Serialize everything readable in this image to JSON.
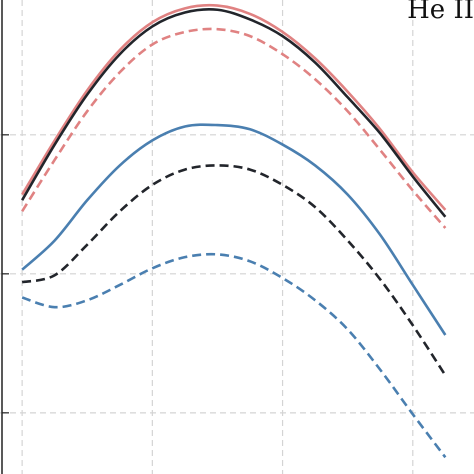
{
  "chart_data": {
    "type": "line",
    "annotation": "He II",
    "x": [
      0,
      0.25,
      0.5,
      0.75,
      1,
      1.25,
      1.5,
      1.75,
      2,
      2.25,
      2.5,
      2.75,
      3,
      3.25
    ],
    "xlim": [
      -0.17,
      3.47
    ],
    "xticks": [
      0,
      1,
      2,
      3
    ],
    "ylim": [
      -0.44,
      2.97
    ],
    "yticks": [
      0,
      1,
      2
    ],
    "grid": true,
    "series": [
      {
        "color": "#e08282",
        "dash": false,
        "values": [
          1.57,
          1.96,
          2.32,
          2.61,
          2.81,
          2.91,
          2.93,
          2.87,
          2.74,
          2.55,
          2.31,
          2.04,
          1.73,
          1.46
        ]
      },
      {
        "color": "#22252b",
        "dash": false,
        "values": [
          1.53,
          1.93,
          2.29,
          2.58,
          2.78,
          2.88,
          2.9,
          2.83,
          2.71,
          2.52,
          2.27,
          2.01,
          1.7,
          1.41
        ]
      },
      {
        "color": "#e08282",
        "dash": true,
        "values": [
          1.45,
          1.82,
          2.17,
          2.45,
          2.65,
          2.74,
          2.76,
          2.71,
          2.58,
          2.4,
          2.17,
          1.89,
          1.6,
          1.33
        ]
      },
      {
        "color": "#4a7fb0",
        "dash": false,
        "values": [
          1.03,
          1.24,
          1.53,
          1.78,
          1.96,
          2.06,
          2.07,
          2.04,
          1.93,
          1.78,
          1.57,
          1.28,
          0.92,
          0.56
        ]
      },
      {
        "color": "#22252b",
        "dash": true,
        "values": [
          0.94,
          0.99,
          1.21,
          1.45,
          1.64,
          1.75,
          1.78,
          1.75,
          1.64,
          1.48,
          1.24,
          0.96,
          0.63,
          0.27
        ]
      },
      {
        "color": "#4a7fb0",
        "dash": true,
        "values": [
          0.83,
          0.76,
          0.81,
          0.92,
          1.04,
          1.12,
          1.14,
          1.09,
          0.97,
          0.81,
          0.6,
          0.31,
          -0.01,
          -0.32
        ]
      }
    ]
  }
}
